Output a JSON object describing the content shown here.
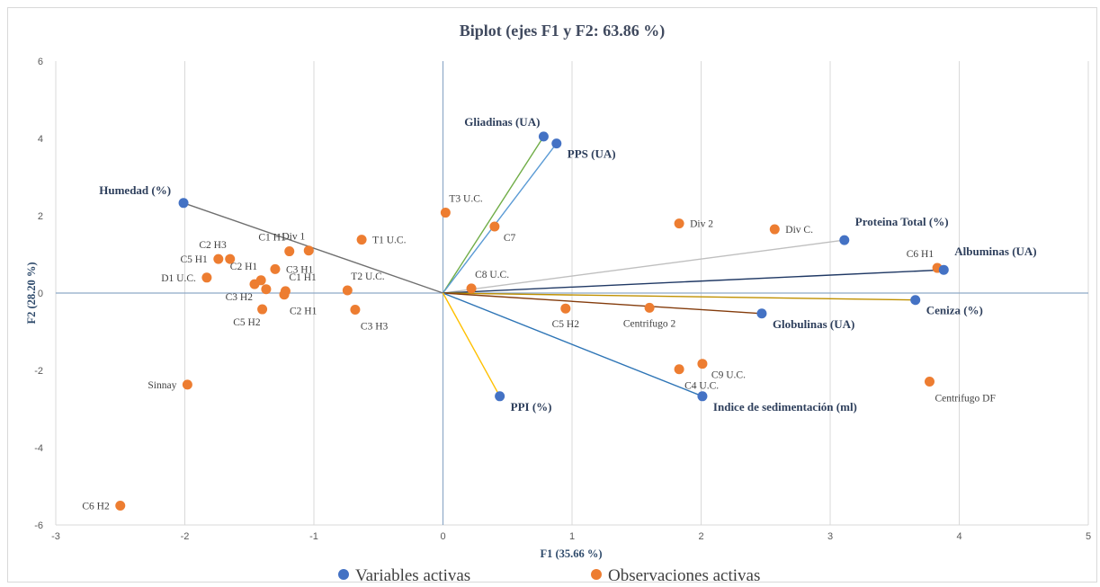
{
  "chart_data": {
    "type": "scatter",
    "title": "Biplot (ejes F1 y F2: 63.86 %)",
    "xlabel": "F1 (35.66 %)",
    "ylabel": "F2 (28.20 %)",
    "xlim": [
      -3,
      5
    ],
    "ylim": [
      -6,
      6
    ],
    "xticks": [
      -3,
      -2,
      -1,
      0,
      1,
      2,
      3,
      4,
      5
    ],
    "yticks": [
      -6,
      -4,
      -2,
      0,
      2,
      4,
      6
    ],
    "grid": "vertical",
    "legend_position": "bottom",
    "legend": [
      {
        "label": "Variables activas",
        "color": "#4472c4"
      },
      {
        "label": "Observaciones activas",
        "color": "#ed7d31"
      }
    ],
    "variables": [
      {
        "name": "Gliadinas (UA)",
        "x": 0.78,
        "y": 4.05,
        "line_color": "#70ad47",
        "label_side": "top-left"
      },
      {
        "name": "PPS (UA)",
        "x": 0.88,
        "y": 3.87,
        "line_color": "#5b9bd5",
        "label_side": "right-below"
      },
      {
        "name": "Humedad (%)",
        "x": -2.01,
        "y": 2.33,
        "line_color": "#6f6f6f",
        "label_side": "left-above"
      },
      {
        "name": "Proteina Total (%)",
        "x": 3.11,
        "y": 1.37,
        "line_color": "#bfbfbf",
        "label_side": "right-above"
      },
      {
        "name": "Albuminas (UA)",
        "x": 3.88,
        "y": 0.6,
        "line_color": "#1f3864",
        "label_side": "right-above"
      },
      {
        "name": "Ceniza (%)",
        "x": 3.66,
        "y": -0.18,
        "line_color": "#bf9000",
        "label_side": "right-below"
      },
      {
        "name": "Globulinas (UA)",
        "x": 2.47,
        "y": -0.53,
        "line_color": "#843c0c",
        "label_side": "right-below"
      },
      {
        "name": "Indice de sedimentación (ml)",
        "x": 2.01,
        "y": -2.67,
        "line_color": "#2e75b6",
        "label_side": "right-below"
      },
      {
        "name": "PPI (%)",
        "x": 0.44,
        "y": -2.67,
        "line_color": "#ffc000",
        "label_side": "right-below"
      }
    ],
    "observations": [
      {
        "name": "T3 U.C.",
        "x": 0.02,
        "y": 2.08,
        "label_side": "top-right"
      },
      {
        "name": "C7",
        "x": 0.4,
        "y": 1.72,
        "label_side": "right-below"
      },
      {
        "name": "Div 2",
        "x": 1.83,
        "y": 1.8,
        "label_side": "right"
      },
      {
        "name": "Div C.",
        "x": 2.57,
        "y": 1.65,
        "label_side": "right"
      },
      {
        "name": "C6 H1",
        "x": 3.83,
        "y": 0.65,
        "label_side": "top-left"
      },
      {
        "name": "C8 U.C.",
        "x": 0.22,
        "y": 0.12,
        "label_side": "top-right"
      },
      {
        "name": "Div 1",
        "x": -1.04,
        "y": 1.1,
        "label_side": "top-left"
      },
      {
        "name": "T1 U.C.",
        "x": -0.63,
        "y": 1.38,
        "label_side": "right"
      },
      {
        "name": "C1 H1",
        "x": -1.19,
        "y": 1.08,
        "label_side": "top-left"
      },
      {
        "name": "C2 H3",
        "x": -1.65,
        "y": 0.88,
        "label_side": "top-left"
      },
      {
        "name": "C5 H1",
        "x": -1.74,
        "y": 0.88,
        "label_side": "left"
      },
      {
        "name": "C3 H1",
        "x": -1.3,
        "y": 0.62,
        "label_side": "right"
      },
      {
        "name": "C2 H1",
        "x": -1.41,
        "y": 0.33,
        "label_side": "top-left"
      },
      {
        "name": "D1 U.C.",
        "x": -1.83,
        "y": 0.4,
        "label_side": "left"
      },
      {
        "name": "C1 H1",
        "x": -1.22,
        "y": 0.05,
        "label_side": "top-right"
      },
      {
        "name": "C3 H2",
        "x": -1.46,
        "y": 0.23,
        "label_side": "bottom-left"
      },
      {
        "name": "",
        "x": -1.37,
        "y": 0.1,
        "label_side": "none"
      },
      {
        "name": "C2 H1",
        "x": -1.23,
        "y": -0.04,
        "label_side": "bottom-right"
      },
      {
        "name": "C5 H2",
        "x": -1.4,
        "y": -0.42,
        "label_side": "bottom-left"
      },
      {
        "name": "T2 U.C.",
        "x": -0.74,
        "y": 0.07,
        "label_side": "top-right"
      },
      {
        "name": "C3 H3",
        "x": -0.68,
        "y": -0.43,
        "label_side": "bottom-right"
      },
      {
        "name": "C5 H2",
        "x": 0.95,
        "y": -0.4,
        "label_side": "bottom"
      },
      {
        "name": "Centrifugo 2",
        "x": 1.6,
        "y": -0.38,
        "label_side": "bottom"
      },
      {
        "name": "C9 U.C.",
        "x": 2.01,
        "y": -1.83,
        "label_side": "right-below"
      },
      {
        "name": "C4 U.C.",
        "x": 1.83,
        "y": -1.97,
        "label_side": "bottom-right"
      },
      {
        "name": "Centrifugo DF",
        "x": 3.77,
        "y": -2.29,
        "label_side": "bottom-right"
      },
      {
        "name": "Sinnay",
        "x": -1.98,
        "y": -2.37,
        "label_side": "left"
      },
      {
        "name": "C6 H2",
        "x": -2.5,
        "y": -5.5,
        "label_side": "left"
      }
    ]
  },
  "colors": {
    "variable_point": "#4472c4",
    "observation_point": "#ed7d31",
    "zero_axis": "#8ea9c8",
    "gridline": "#d9d9d9"
  }
}
